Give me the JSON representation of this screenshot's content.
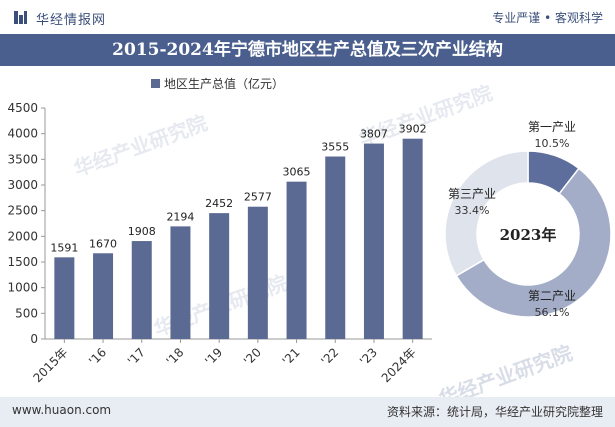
{
  "header": {
    "brand": "华经情报网",
    "slogan": "专业严谨 • 客观科学"
  },
  "title": "2015-2024年宁德市地区生产总值及三次产业结构",
  "footer": {
    "website": "www.huaon.com",
    "source": "资料来源：统计局，华经产业研究院整理"
  },
  "watermark": "华经产业研究院",
  "colors": {
    "bar": "#5b6a93",
    "primary": "#5e6e9c",
    "secondary": "#a3adc8",
    "tertiary": "#dfe3ec",
    "title_bg": "#4a5f8e"
  },
  "chart_data": [
    {
      "type": "bar",
      "legend": "地区生产总值（亿元）",
      "legend_position": "top",
      "categories": [
        "2015年",
        "'16",
        "'17",
        "'18",
        "'19",
        "'20",
        "'21",
        "'22",
        "'23",
        "2024年"
      ],
      "series": [
        {
          "name": "地区生产总值（亿元）",
          "values": [
            1591,
            1670,
            1908,
            2194,
            2452,
            2577,
            3065,
            3555,
            3807,
            3902
          ]
        }
      ],
      "yticks": [
        0,
        500,
        1000,
        1500,
        2000,
        2500,
        3000,
        3500,
        4000,
        4500
      ],
      "ylim": [
        0,
        4500
      ],
      "grid": false
    },
    {
      "type": "pie",
      "style": "donut",
      "center_label": "2023年",
      "slices": [
        {
          "label": "第一产业",
          "value": 10.5,
          "display": "10.5%"
        },
        {
          "label": "第二产业",
          "value": 56.1,
          "display": "56.1%"
        },
        {
          "label": "第三产业",
          "value": 33.4,
          "display": "33.4%"
        }
      ]
    }
  ]
}
